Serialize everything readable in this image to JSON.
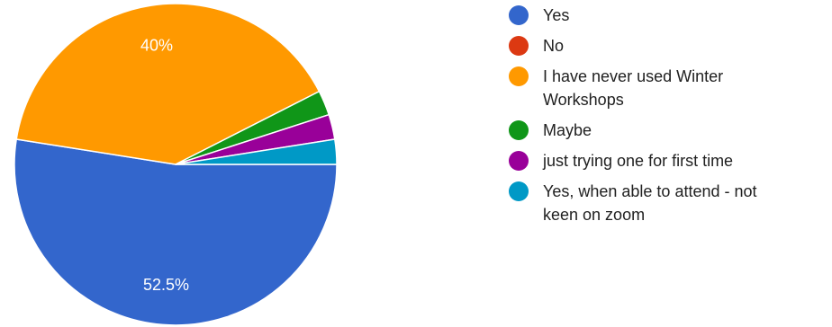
{
  "chart_data": {
    "type": "pie",
    "start": "3 o'clock, clockwise",
    "legend_position": "right",
    "slices": [
      {
        "label": "Yes",
        "value": 52.5,
        "color": "#3366cc",
        "data_label": "52.5%"
      },
      {
        "label": "No",
        "value": 0,
        "color": "#dc3912",
        "data_label": ""
      },
      {
        "label": "I have never used Winter Workshops",
        "value": 40,
        "color": "#ff9900",
        "data_label": "40%"
      },
      {
        "label": "Maybe",
        "value": 2.5,
        "color": "#109618",
        "data_label": ""
      },
      {
        "label": "just trying one for first time",
        "value": 2.5,
        "color": "#990099",
        "data_label": ""
      },
      {
        "label": "Yes, when able to attend - not keen on zoom",
        "value": 2.5,
        "color": "#0099c6",
        "data_label": ""
      }
    ]
  },
  "legend": {
    "items": [
      {
        "lines": [
          "Yes"
        ],
        "color": "#3366cc"
      },
      {
        "lines": [
          "No"
        ],
        "color": "#dc3912"
      },
      {
        "lines": [
          "I have never used Winter",
          "Workshops"
        ],
        "color": "#ff9900"
      },
      {
        "lines": [
          "Maybe"
        ],
        "color": "#109618"
      },
      {
        "lines": [
          "just trying one for first time"
        ],
        "color": "#990099"
      },
      {
        "lines": [
          "Yes, when able to attend - not",
          "keen on zoom"
        ],
        "color": "#0099c6"
      }
    ]
  }
}
